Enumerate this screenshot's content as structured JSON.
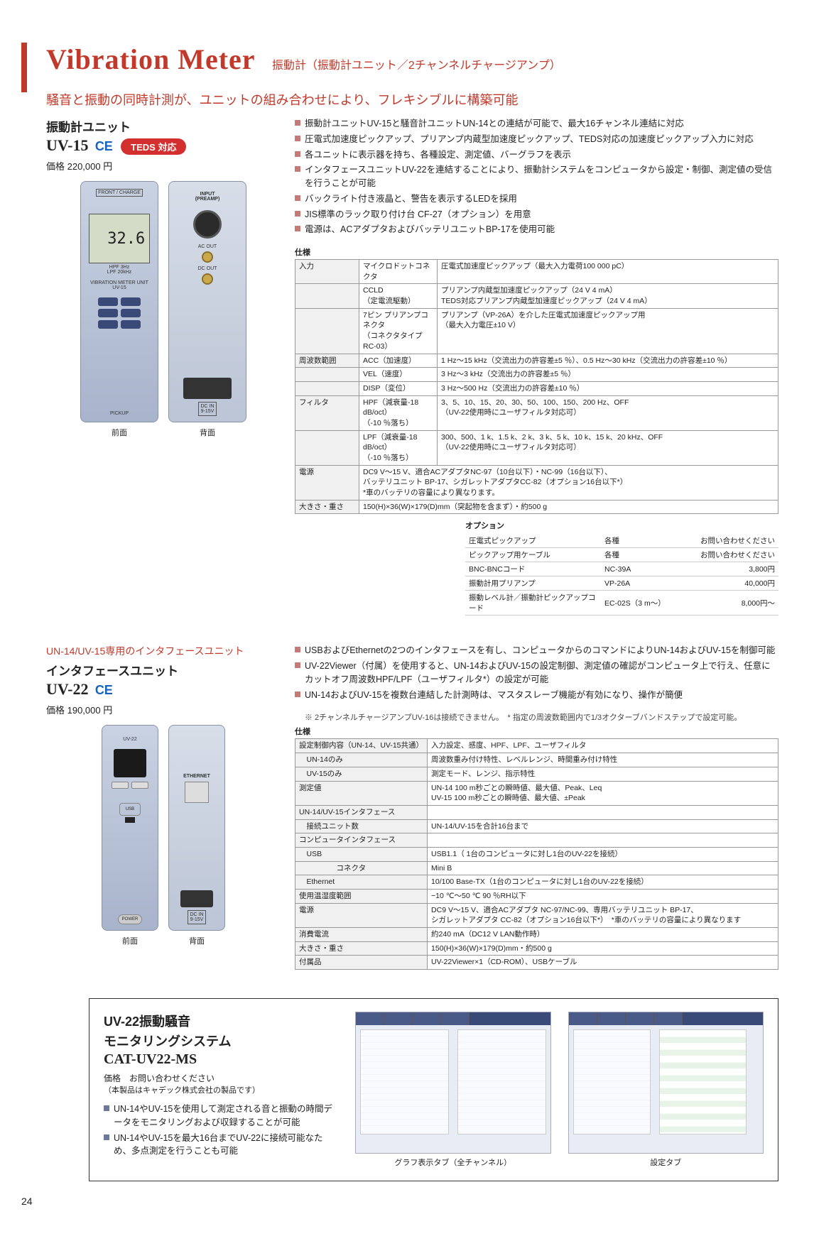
{
  "page_number": "24",
  "header": {
    "title_en": "Vibration Meter",
    "title_jp": "振動計（振動計ユニット／2チャンネルチャージアンプ）"
  },
  "lead": "騒音と振動の同時計測が、ユニットの組み合わせにより、フレキシブルに構築可能",
  "uv15": {
    "name": "振動計ユニット",
    "model": "UV-15",
    "ce": "CE",
    "teds": "TEDS 対応",
    "price": "価格  220,000 円",
    "display_value": "32.6",
    "front_top_label": "FRONT / CHARGE",
    "back_top_label": "INPUT\n(PREAMP)",
    "back_acout": "AC OUT",
    "back_dcout": "DC OUT",
    "back_dcin": "DC IN\n9-15V",
    "front_caption": "前面",
    "back_caption": "背面",
    "bullets": [
      "振動計ユニットUV-15と騒音計ユニットUN-14との連結が可能で、最大16チャンネル連結に対応",
      "圧電式加速度ピックアップ、プリアンプ内蔵型加速度ピックアップ、TEDS対応の加速度ピックアップ入力に対応",
      "各ユニットに表示器を持ち、各種設定、測定値、バーグラフを表示",
      "インタフェースユニットUV-22を連結することにより、振動計システムをコンピュータから設定・制御、測定値の受信を行うことが可能",
      "バックライト付き液晶と、警告を表示するLEDを採用",
      "JIS標準のラック取り付け台 CF-27（オプション）を用意",
      "電源は、ACアダプタおよびバッテリユニットBP-17を使用可能"
    ],
    "spec_title": "仕様",
    "spec": [
      {
        "h": "入力",
        "sub": "マイクロドットコネクタ",
        "v": "圧電式加速度ピックアップ（最大入力電荷100 000 pC）"
      },
      {
        "h": "",
        "sub": "CCLD\n（定電流駆動）",
        "v": "プリアンプ内蔵型加速度ピックアップ（24 V 4 mA）\nTEDS対応プリアンプ内蔵型加速度ピックアップ（24 V 4 mA）"
      },
      {
        "h": "",
        "sub": "7ピン プリアンプコネクタ\n（コネクタタイプRC-03）",
        "v": "プリアンプ（VP-26A）を介した圧電式加速度ピックアップ用\n（最大入力電圧±10 V）"
      },
      {
        "h": "周波数範囲",
        "sub": "ACC（加速度）",
        "v": "1 Hz～15 kHz（交流出力の許容差±5 ％）、0.5 Hz～30 kHz（交流出力の許容差±10 ％）"
      },
      {
        "h": "",
        "sub": "VEL（速度）",
        "v": "3 Hz～3 kHz（交流出力の許容差±5 ％）"
      },
      {
        "h": "",
        "sub": "DISP（変位）",
        "v": "3 Hz～500 Hz（交流出力の許容差±10 ％）"
      },
      {
        "h": "フィルタ",
        "sub": "HPF（減衰量-18 dB/oct）\n（-10 ％落ち）",
        "v": "3、5、10、15、20、30、50、100、150、200 Hz、OFF\n（UV-22使用時にユーザフィルタ対応可）"
      },
      {
        "h": "",
        "sub": "LPF（減衰量-18 dB/oct）\n（-10 ％落ち）",
        "v": "300、500、1 k、1.5 k、2 k、3 k、5 k、10 k、15 k、20 kHz、OFF\n（UV-22使用時にユーザフィルタ対応可）"
      },
      {
        "h": "電源",
        "sub": "",
        "v": "DC9 V～15 V、適合ACアダプタNC-97（10台以下）・NC-99（16台以下）、\nバッテリユニット BP-17、シガレットアダプタCC-82（オプション16台以下*）\n*車のバッテリの容量により異なります。"
      },
      {
        "h": "大きさ・重さ",
        "sub": "",
        "v": "150(H)×36(W)×179(D)mm（突起物を含まず）・約500 g"
      }
    ],
    "opt_title": "オプション",
    "options": [
      {
        "n": "圧電式ピックアップ",
        "m": "各種",
        "p": "お問い合わせください"
      },
      {
        "n": "ピックアップ用ケーブル",
        "m": "各種",
        "p": "お問い合わせください"
      },
      {
        "n": "BNC-BNCコード",
        "m": "NC-39A",
        "p": "3,800円"
      },
      {
        "n": "振動計用プリアンプ",
        "m": "VP-26A",
        "p": "40,000円"
      },
      {
        "n": "振動レベル計／振動計ピックアップコード",
        "m": "EC-02S（3 m～）",
        "p": "8,000円～"
      }
    ]
  },
  "uv22": {
    "subhead": "UN-14/UV-15専用のインタフェースユニット",
    "name": "インタフェースユニット",
    "model": "UV-22",
    "ce": "CE",
    "price": "価格  190,000 円",
    "front_caption": "前面",
    "back_caption": "背面",
    "back_eth": "ETHERNET",
    "back_dcin": "DC IN\n9-15V",
    "bullets": [
      "USBおよびEthernetの2つのインタフェースを有し、コンピュータからのコマンドによりUN-14およびUV-15を制御可能",
      "UV-22Viewer（付属）を使用すると、UN-14およびUV-15の設定制御、測定値の確認がコンピュータ上で行え、任意にカットオフ周波数HPF/LPF（ユーザフィルタ*）の設定が可能",
      "UN-14およびUV-15を複数台連結した計測時は、マスタスレーブ機能が有効になり、操作が簡便"
    ],
    "note": "※ 2チャンネルチャージアンプUV-16は接続できません。　* 指定の周波数範囲内で1/3オクターブバンドステップで設定可能。",
    "spec_title": "仕様",
    "spec": [
      {
        "h": "設定制御内容（UN-14、UV-15共通）",
        "v": "入力設定、感度、HPF、LPF、ユーザフィルタ"
      },
      {
        "h": "　UN-14のみ",
        "v": "周波数重み付け特性、レベルレンジ、時間重み付け特性"
      },
      {
        "h": "　UV-15のみ",
        "v": "測定モード、レンジ、指示特性"
      },
      {
        "h": "測定値",
        "v": "UN-14 100 m秒ごとの瞬時値、最大値、Peak、Leq\nUV-15 100 m秒ごとの瞬時値、最大値、±Peak"
      },
      {
        "h": "UN-14/UV-15インタフェース",
        "v": ""
      },
      {
        "h": "　接続ユニット数",
        "v": "UN-14/UV-15を合計16台まで"
      },
      {
        "h": "コンピュータインタフェース",
        "v": ""
      },
      {
        "h": "　USB",
        "v": "USB1.1（ 1台のコンピュータに対し1台のUV-22を接続）"
      },
      {
        "h": "　　　　　コネクタ",
        "v": "Mini B"
      },
      {
        "h": "　Ethernet",
        "v": "10/100 Base-TX（1台のコンピュータに対し1台のUV-22を接続）"
      },
      {
        "h": "使用温湿度範囲",
        "v": "−10 ℃～50 ℃ 90 ％RH以下"
      },
      {
        "h": "電源",
        "v": "DC9 V～15 V、適合ACアダプタ NC-97/NC-99、専用バッテリユニット BP-17、\nシガレットアダプタ CC-82（オプション16台以下*）　*車のバッテリの容量により異なります"
      },
      {
        "h": "消費電流",
        "v": "約240 mA（DC12 V LAN動作時）"
      },
      {
        "h": "大きさ・重さ",
        "v": "150(H)×36(W)×179(D)mm・約500 g"
      },
      {
        "h": "付属品",
        "v": "UV-22Viewer×1（CD-ROM）、USBケーブル"
      }
    ]
  },
  "cat": {
    "title1": "UV-22振動騒音",
    "title2": "モニタリングシステム",
    "model": "CAT-UV22-MS",
    "price": "価格　お問い合わせください",
    "note": "（本製品はキャデック株式会社の製品です）",
    "bullets": [
      "UN-14やUV-15を使用して測定される音と振動の時間データをモニタリングおよび収録することが可能",
      "UN-14やUV-15を最大16台までUV-22に接続可能なため、多点測定を行うことも可能"
    ],
    "scap1": "グラフ表示タブ（全チャンネル）",
    "scap2": "設定タブ"
  },
  "colors": {
    "brand_red": "#c0392b",
    "device_body": "#b4bed2",
    "teds_red": "#d32f2f"
  }
}
